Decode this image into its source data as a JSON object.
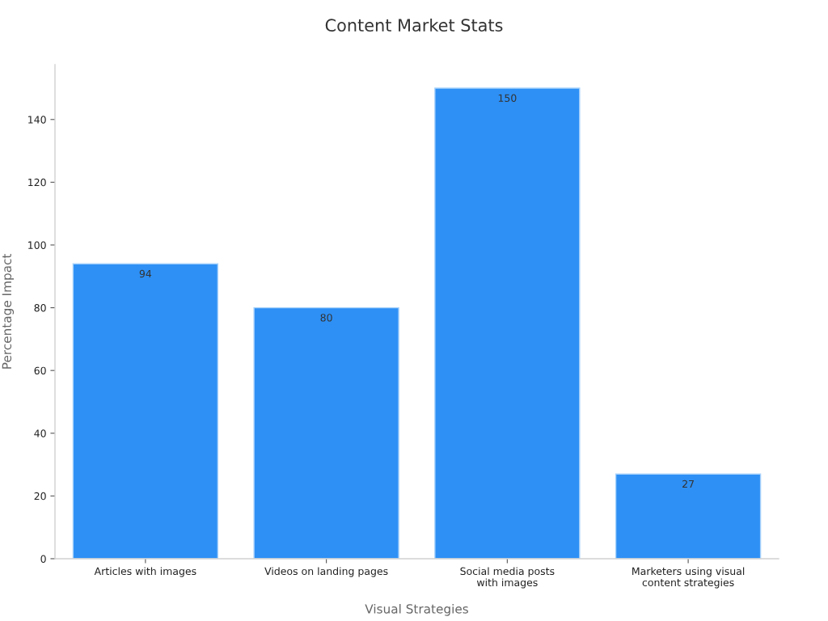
{
  "chart_data": {
    "type": "bar",
    "title": "Content Market Stats",
    "xlabel": "Visual Strategies",
    "ylabel": "Percentage Impact",
    "categories": [
      "Articles with images",
      "Videos on landing pages",
      "Social media posts\nwith images",
      "Marketers using visual\ncontent strategies"
    ],
    "values": [
      94,
      80,
      150,
      27
    ],
    "color": "#2e90f5",
    "ylim": [
      0,
      157.5
    ],
    "yticks": [
      0,
      20,
      40,
      60,
      80,
      100,
      120,
      140
    ],
    "grid": false,
    "data_labels": true
  }
}
